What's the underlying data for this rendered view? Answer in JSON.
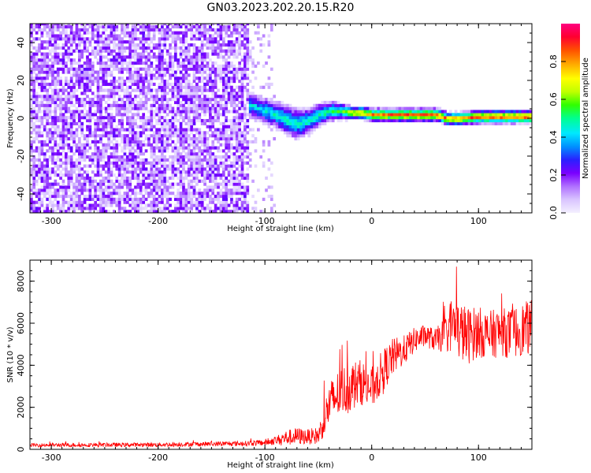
{
  "figure": {
    "title": "GN03.2023.202.20.15.R20"
  },
  "chart_data": [
    {
      "type": "heatmap",
      "title": "",
      "xlabel": "Height of straight line (km)",
      "ylabel": "Frequency (Hz)",
      "xlim": [
        -320,
        150
      ],
      "ylim": [
        -50,
        50
      ],
      "xticks": [
        -300,
        -200,
        -100,
        0,
        100
      ],
      "yticks": [
        -40,
        -20,
        0,
        20,
        40
      ],
      "colorbar": {
        "label": "Normalized spectral amplitude",
        "range": [
          0.0,
          1.0
        ],
        "ticks": [
          0.0,
          0.2,
          0.4,
          0.6,
          0.8
        ],
        "colors": [
          "#f4f0ff",
          "#d9c4ff",
          "#b070ff",
          "#7a00ff",
          "#2a20ff",
          "#0090ff",
          "#00e8ff",
          "#00ff90",
          "#30ff00",
          "#c0ff00",
          "#ffff00",
          "#ffb000",
          "#ff5000",
          "#ff0030",
          "#ff0080"
        ]
      },
      "regions": [
        {
          "x": [
            -320,
            -115
          ],
          "description_level": "noise",
          "amplitude": 0.15
        },
        {
          "x": [
            -115,
            150
          ],
          "center_frequency": 0,
          "amplitude_peak": 0.85
        }
      ],
      "signal_track": {
        "x": [
          -115,
          -100,
          -90,
          -80,
          -70,
          -60,
          -50,
          -40,
          -30,
          -20,
          -10,
          0,
          20,
          40,
          60,
          70,
          80,
          100,
          120,
          150
        ],
        "freq": [
          6,
          3,
          1,
          -2,
          -4,
          -2,
          1,
          3,
          3,
          2,
          2,
          1,
          1,
          1,
          1,
          -1,
          -1,
          0,
          0,
          0
        ],
        "width": [
          7,
          8,
          8,
          9,
          9,
          8,
          7,
          6,
          5,
          4,
          4,
          4,
          4,
          4,
          4,
          4,
          4,
          4,
          4,
          4
        ],
        "amplitude": [
          0.45,
          0.45,
          0.5,
          0.5,
          0.5,
          0.5,
          0.5,
          0.55,
          0.6,
          0.75,
          0.8,
          0.85,
          0.9,
          0.9,
          0.9,
          0.85,
          0.85,
          0.9,
          0.9,
          0.9
        ]
      }
    },
    {
      "type": "line",
      "title": "",
      "xlabel": "Height of straight line (km)",
      "ylabel": "SNR (10 * v/v)",
      "xlim": [
        -320,
        150
      ],
      "ylim": [
        0,
        9000
      ],
      "xticks": [
        -300,
        -200,
        -100,
        0,
        100
      ],
      "yticks": [
        0,
        2000,
        4000,
        6000,
        8000
      ],
      "series": [
        {
          "color": "#ff0000",
          "x": [
            -320,
            -200,
            -120,
            -100,
            -90,
            -80,
            -70,
            -60,
            -50,
            -45,
            -40,
            -30,
            -20,
            -10,
            0,
            10,
            20,
            30,
            40,
            50,
            60,
            70,
            75,
            80,
            90,
            100,
            110,
            120,
            130,
            140,
            150
          ],
          "mean": [
            200,
            220,
            280,
            320,
            420,
            550,
            620,
            600,
            650,
            1300,
            2100,
            2700,
            3000,
            3200,
            2900,
            3700,
            4400,
            4700,
            5200,
            5400,
            5200,
            5500,
            6000,
            5700,
            5400,
            5600,
            5400,
            5600,
            5500,
            5700,
            5800
          ],
          "spread": [
            150,
            170,
            200,
            250,
            350,
            600,
            700,
            600,
            700,
            1200,
            1800,
            2000,
            2000,
            1800,
            1700,
            1700,
            1500,
            1200,
            1000,
            900,
            900,
            1500,
            2300,
            2400,
            2300,
            2000,
            2000,
            1900,
            2000,
            2100,
            2200
          ]
        }
      ]
    }
  ]
}
